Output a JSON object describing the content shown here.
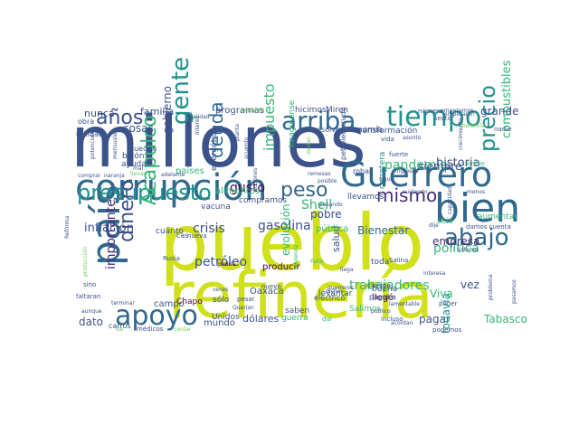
{
  "palette": {
    "background": "#ffffff",
    "navy": "#3b528b",
    "slate": "#31688e",
    "teal": "#21918c",
    "green": "#35b779",
    "lime": "#d0e11c",
    "purple": "#472d7b",
    "dark": "#440154",
    "light": "#6ece58"
  },
  "words": [
    "millones",
    "pueblo",
    "refinería",
    "corrupción",
    "Guerrero",
    "país",
    "bien",
    "apoyo",
    "tiempo",
    "arriba",
    "abajo",
    "gente",
    "presupuesto",
    "precio",
    "deuda",
    "peso",
    "años",
    "dinero",
    "Acapulco",
    "mismo",
    "gasolina",
    "impuesto",
    "gusto",
    "trabajadores",
    "pandemia",
    "historia",
    "combustibles",
    "Shell",
    "crisis",
    "petróleo",
    "inflación",
    "importante",
    "política",
    "Bienestar",
    "empresa",
    "gobierno",
    "siempre",
    "cosas",
    "nunca",
    "familia",
    "programas",
    "grande",
    "pobre",
    "pagar",
    "todavía",
    "Tabasco",
    "Viva",
    "vez",
    "evolución",
    "producir",
    "dato",
    "salud",
    "pública",
    "dólares",
    "Oaxaca",
    "levantar",
    "mundo",
    "guerra",
    "Chapo",
    "campo",
    "energético",
    "billón",
    "ayudar",
    "compramos",
    "alimentos",
    "países",
    "vacuna",
    "cuánto",
    "saben",
    "Unidos",
    "sólo",
    "eléctrico",
    "llegó",
    "aumentar",
    "seis",
    "toda",
    "buena",
    "hicimos",
    "Miren",
    "economía",
    "transformación",
    "resolver",
    "pasado",
    "fuerte",
    "robar",
    "carretera",
    "sector",
    "número",
    "empezamos",
    "cambio",
    "nadie",
    "vida",
    "petróleo crudo",
    "Imagínense",
    "llevamos",
    "utilidades",
    "obra",
    "pueden",
    "Salimos",
    "podemos",
    "pagaba",
    "dar",
    "carros",
    "médicos",
    "Rusia",
    "Reforma",
    "sino",
    "faltaran",
    "aunque",
    "poner",
    "incluso",
    "público",
    "damos cuenta",
    "menos",
    "pasamos",
    "camino",
    "nuevo",
    "acciones",
    "podría",
    "pesar",
    "cas",
    "nueva",
    "mal",
    "llevar",
    "Salina",
    "sistema",
    "Iberdrola",
    "crecimiento",
    "veces",
    "terminar",
    "Querían",
    "vivienda",
    "adelante",
    "comprar",
    "naranja",
    "Faltó",
    "sigue",
    "decían",
    "mensuales",
    "potenciales",
    "producción",
    "contar",
    "remesas",
    "cuidando",
    "capacidad",
    "ise",
    "llega",
    "dicho",
    "guerreros",
    "lamentable",
    "interesa",
    "problema",
    "dije",
    "acordan",
    "asunto",
    "empezaron",
    "calidad",
    "interés",
    "acuerdo",
    "planta",
    "posible",
    "pasando",
    "ingresos"
  ]
}
